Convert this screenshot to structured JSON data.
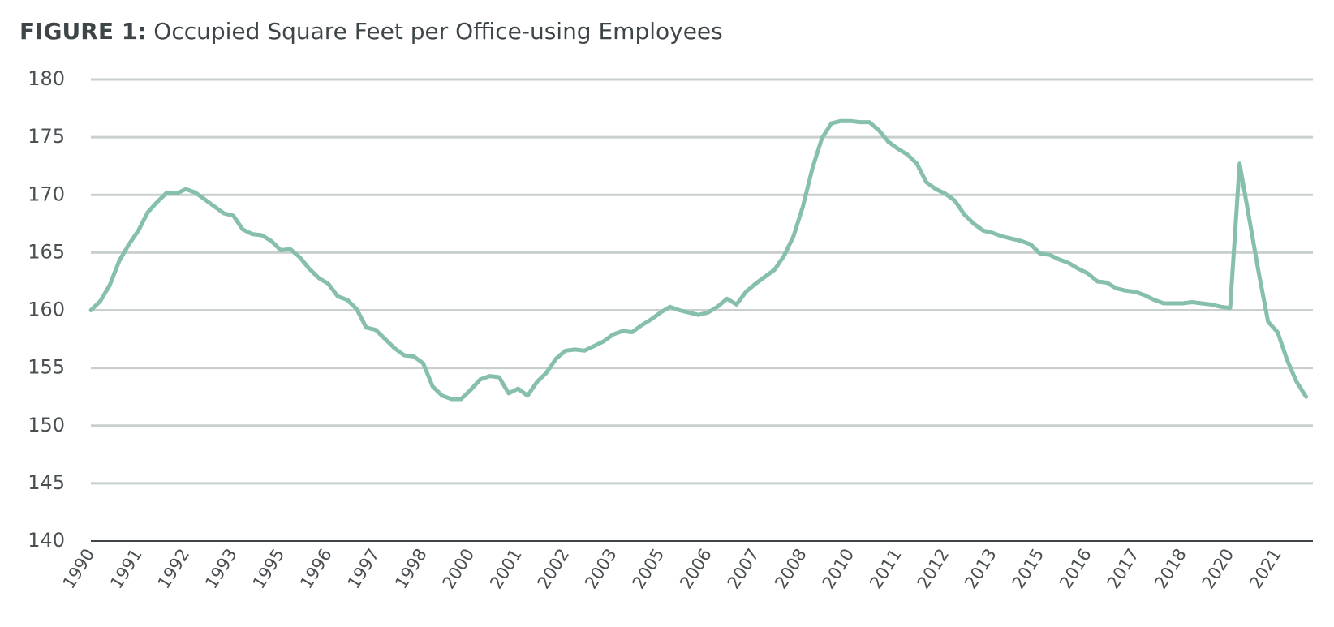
{
  "chart_data": {
    "type": "line",
    "figure_label": "FIGURE 1:",
    "title": "Occupied Square Feet per Office-using Employees",
    "categories": [
      "1990",
      null,
      null,
      null,
      null,
      "1991",
      null,
      null,
      null,
      null,
      "1992",
      null,
      null,
      null,
      null,
      "1993",
      null,
      null,
      null,
      null,
      "1995",
      null,
      null,
      null,
      null,
      "1996",
      null,
      null,
      null,
      null,
      "1997",
      null,
      null,
      null,
      null,
      "1998",
      null,
      null,
      null,
      null,
      "2000",
      null,
      null,
      null,
      null,
      "2001",
      null,
      null,
      null,
      null,
      "2002",
      null,
      null,
      null,
      null,
      "2003",
      null,
      null,
      null,
      null,
      "2005",
      null,
      null,
      null,
      null,
      "2006",
      null,
      null,
      null,
      null,
      "2007",
      null,
      null,
      null,
      null,
      "2008",
      null,
      null,
      null,
      null,
      "2010",
      null,
      null,
      null,
      null,
      "2011",
      null,
      null,
      null,
      null,
      "2012",
      null,
      null,
      null,
      null,
      "2013",
      null,
      null,
      null,
      null,
      "2015",
      null,
      null,
      null,
      null,
      "2016",
      null,
      null,
      null,
      null,
      "2017",
      null,
      null,
      null,
      null,
      "2018",
      null,
      null,
      null,
      null,
      "2020",
      null,
      null,
      null,
      null,
      "2021",
      null,
      null,
      null
    ],
    "series": [
      {
        "color": "#86bfac",
        "values": [
          160,
          160.8,
          162.2,
          164.3,
          165.7,
          166.9,
          168.5,
          169.4,
          170.2,
          170.1,
          170.5,
          170.2,
          169.6,
          169,
          168.4,
          168.2,
          167,
          166.6,
          166.5,
          166,
          165.2,
          165.3,
          164.6,
          163.6,
          162.8,
          162.3,
          161.2,
          160.9,
          160.1,
          158.5,
          158.3,
          157.5,
          156.7,
          156.1,
          156,
          155.4,
          153.4,
          152.6,
          152.3,
          152.3,
          153.1,
          154,
          154.3,
          154.2,
          152.8,
          153.2,
          152.6,
          153.8,
          154.6,
          155.8,
          156.5,
          156.6,
          156.5,
          156.9,
          157.3,
          157.9,
          158.2,
          158.1,
          158.7,
          159.2,
          159.8,
          160.3,
          160,
          159.8,
          159.6,
          159.8,
          160.3,
          161,
          160.5,
          161.6,
          162.3,
          162.9,
          163.5,
          164.7,
          166.4,
          169,
          172.3,
          174.9,
          176.2,
          176.4,
          176.4,
          176.3,
          176.3,
          175.6,
          174.6,
          174,
          173.5,
          172.7,
          171.1,
          170.5,
          170.1,
          169.5,
          168.3,
          167.5,
          166.9,
          166.7,
          166.4,
          166.2,
          166,
          165.7,
          164.9,
          164.8,
          164.4,
          164.1,
          163.6,
          163.2,
          162.5,
          162.4,
          161.9,
          161.7,
          161.6,
          161.3,
          160.9,
          160.6,
          160.6,
          160.6,
          160.7,
          160.6,
          160.5,
          160.3,
          160.2,
          172.7,
          168,
          163.3,
          159,
          158.1,
          155.7,
          153.8,
          152.5
        ]
      }
    ],
    "ylim": [
      140,
      180
    ],
    "yticks": [
      140,
      145,
      150,
      155,
      160,
      165,
      170,
      175,
      180
    ],
    "grid": true
  }
}
